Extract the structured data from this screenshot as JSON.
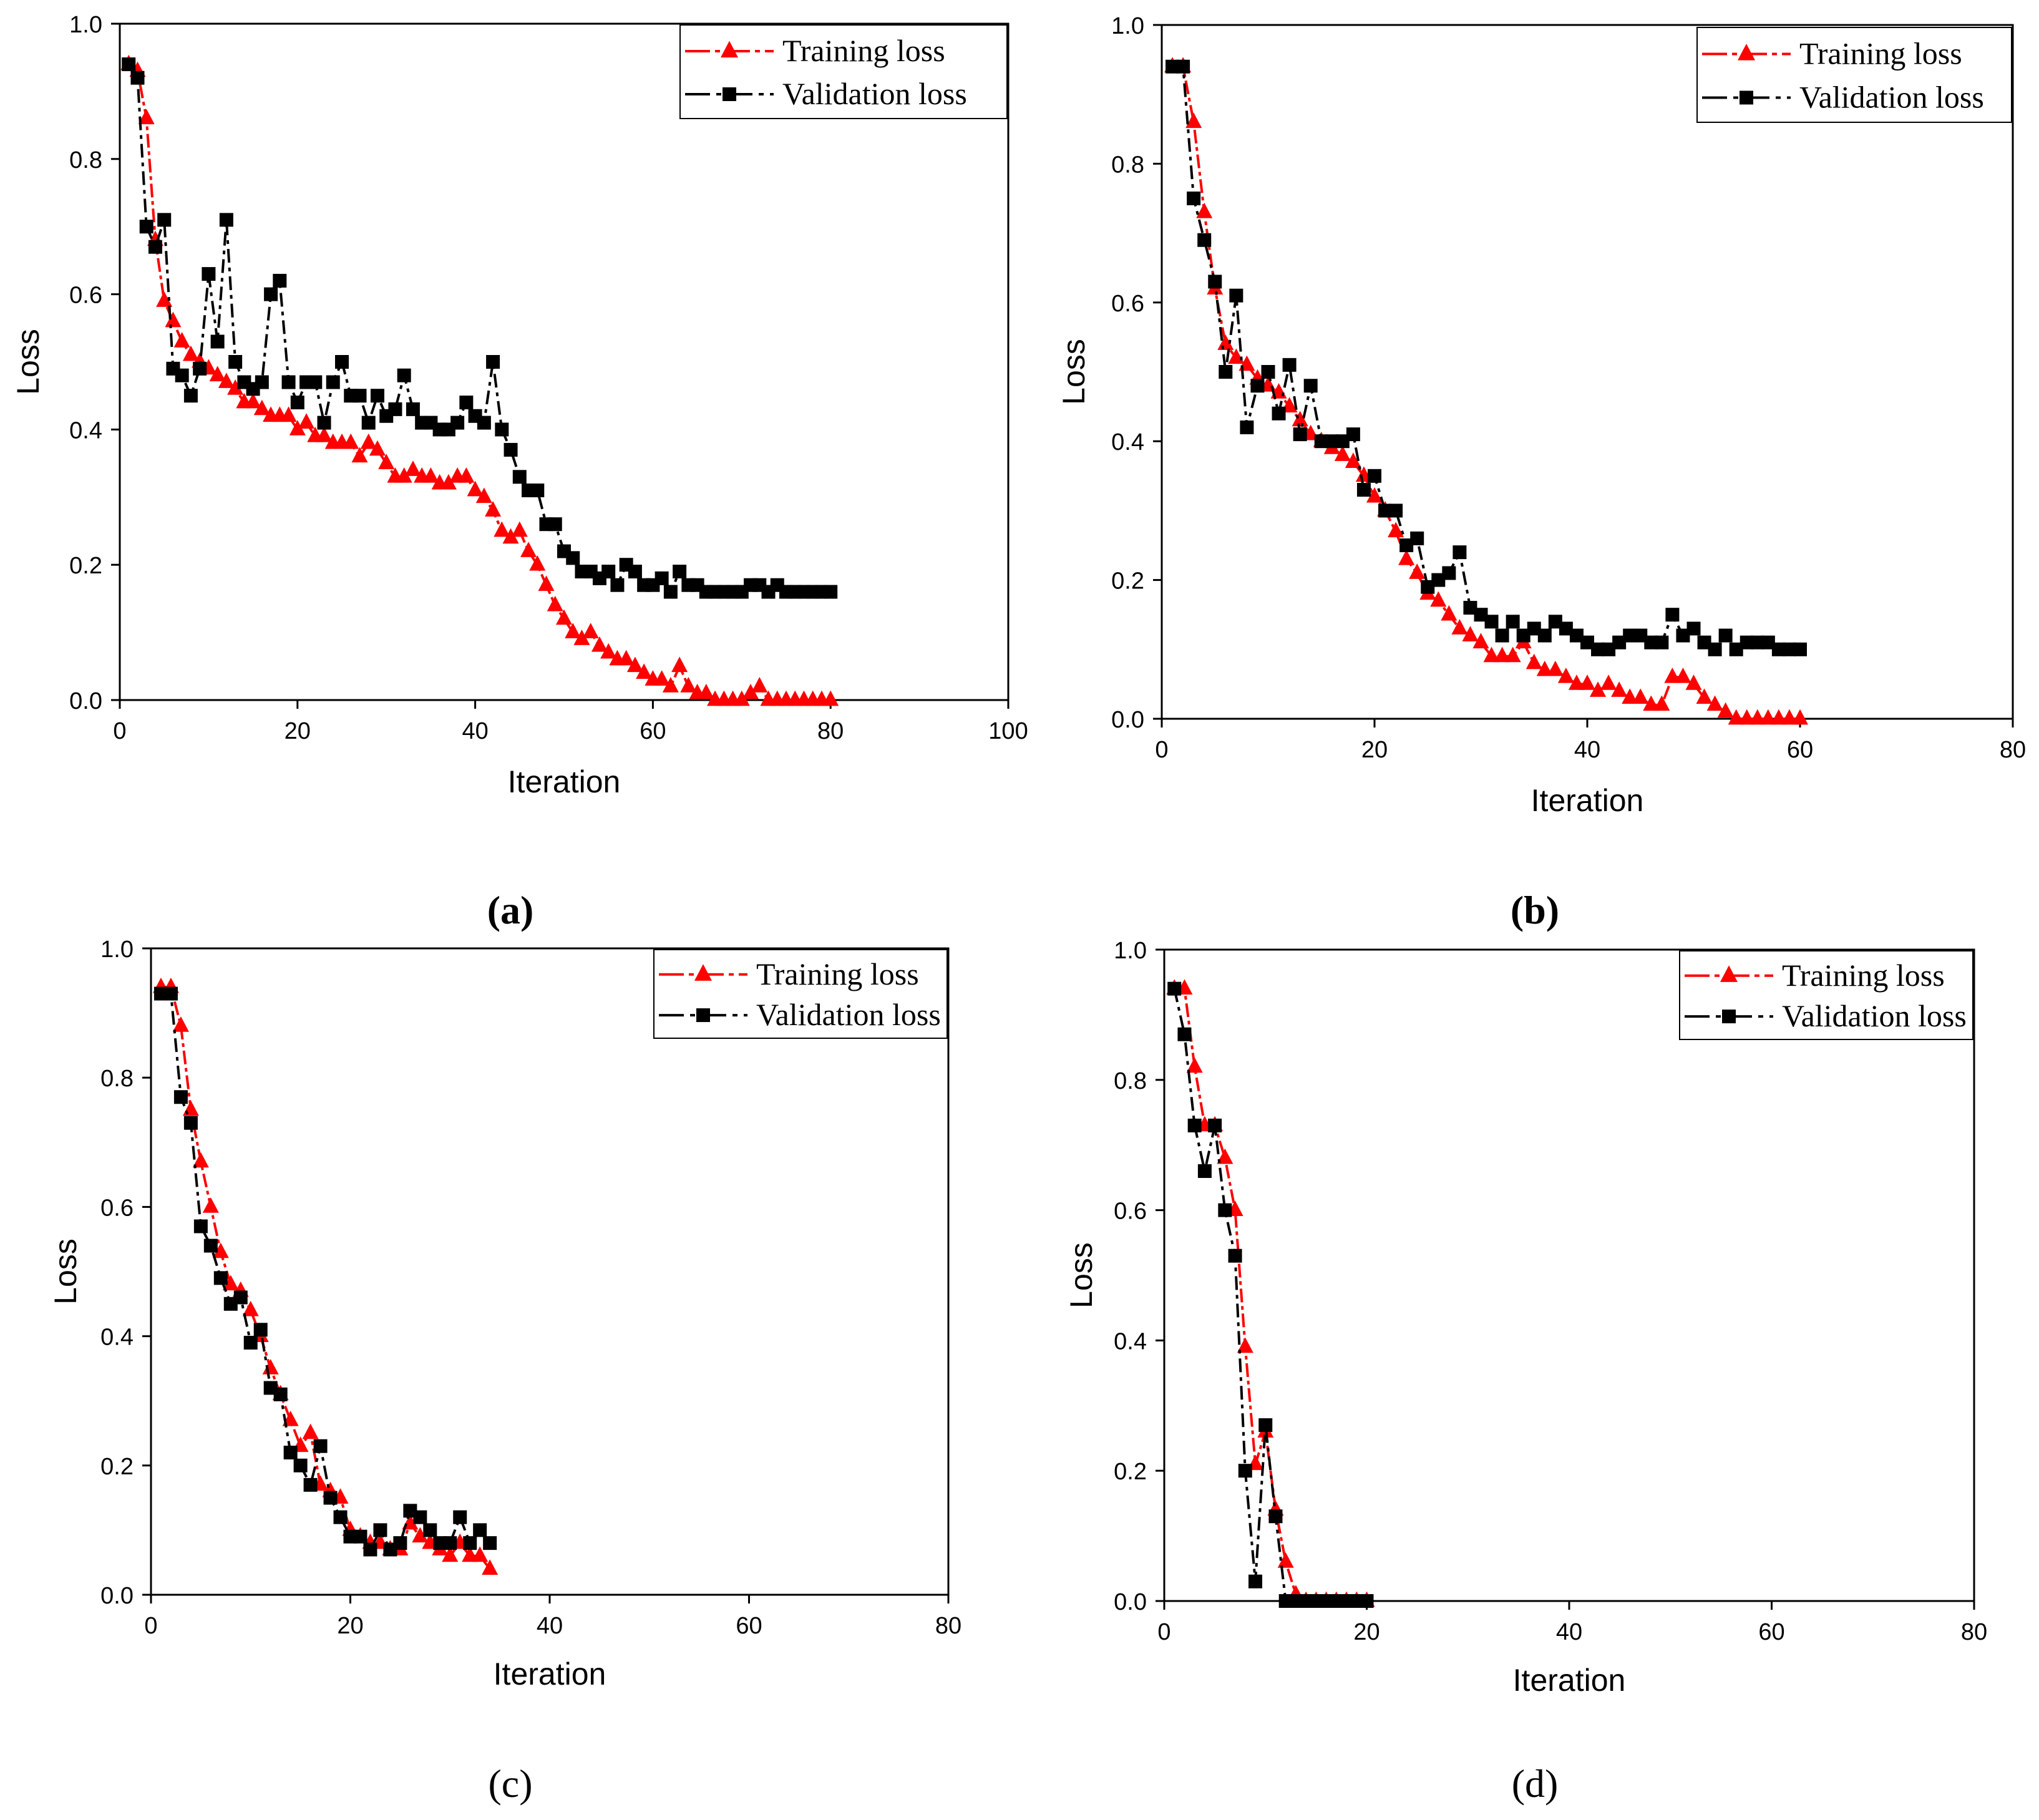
{
  "colors": {
    "training": "#ff0000",
    "validation": "#000000"
  },
  "chart_data": [
    {
      "type": "line",
      "panel": "a",
      "xlabel": "Iteration",
      "ylabel": "Loss",
      "xlim": [
        0,
        100
      ],
      "ylim": [
        0,
        1.0
      ],
      "xticks": [
        0,
        20,
        40,
        60,
        80,
        100
      ],
      "yticks": [
        0.0,
        0.2,
        0.4,
        0.6,
        0.8,
        1.0
      ],
      "xtick_labels": [
        "0",
        "20",
        "40",
        "60",
        "80",
        "100"
      ],
      "ytick_labels": [
        "0.0",
        "0.2",
        "0.4",
        "0.6",
        "0.8",
        "1.0"
      ],
      "legend": [
        "Training loss",
        "Validation loss"
      ],
      "legend_position": "top-right",
      "series": [
        {
          "name": "Training loss",
          "marker": "triangle",
          "x": [
            1,
            2,
            3,
            4,
            5,
            6,
            7,
            8,
            9,
            10,
            11,
            12,
            13,
            14,
            15,
            16,
            17,
            18,
            19,
            20,
            21,
            22,
            23,
            24,
            25,
            26,
            27,
            28,
            29,
            30,
            31,
            32,
            33,
            34,
            35,
            36,
            37,
            38,
            39,
            40,
            41,
            42,
            43,
            44,
            45,
            46,
            47,
            48,
            49,
            50,
            51,
            52,
            53,
            54,
            55,
            56,
            57,
            58,
            59,
            60,
            61,
            62,
            63,
            64,
            65,
            66,
            67,
            68,
            69,
            70,
            71,
            72,
            73,
            74,
            75,
            76,
            77,
            78,
            79,
            80
          ],
          "values": [
            0.94,
            0.93,
            0.86,
            0.68,
            0.59,
            0.56,
            0.53,
            0.51,
            0.5,
            0.49,
            0.48,
            0.47,
            0.46,
            0.44,
            0.44,
            0.43,
            0.42,
            0.42,
            0.42,
            0.4,
            0.41,
            0.39,
            0.39,
            0.38,
            0.38,
            0.38,
            0.36,
            0.38,
            0.37,
            0.35,
            0.33,
            0.33,
            0.34,
            0.33,
            0.33,
            0.32,
            0.32,
            0.33,
            0.33,
            0.31,
            0.3,
            0.28,
            0.25,
            0.24,
            0.25,
            0.22,
            0.2,
            0.17,
            0.14,
            0.12,
            0.1,
            0.09,
            0.1,
            0.08,
            0.07,
            0.06,
            0.06,
            0.05,
            0.04,
            0.03,
            0.03,
            0.02,
            0.05,
            0.02,
            0.01,
            0.01,
            0.0,
            0.0,
            0.0,
            0.0,
            0.01,
            0.02,
            0.0,
            0.0,
            0.0,
            0.0,
            0.0,
            0.0,
            0.0,
            0.0
          ]
        },
        {
          "name": "Validation loss",
          "marker": "square",
          "x": [
            1,
            2,
            3,
            4,
            5,
            6,
            7,
            8,
            9,
            10,
            11,
            12,
            13,
            14,
            15,
            16,
            17,
            18,
            19,
            20,
            21,
            22,
            23,
            24,
            25,
            26,
            27,
            28,
            29,
            30,
            31,
            32,
            33,
            34,
            35,
            36,
            37,
            38,
            39,
            40,
            41,
            42,
            43,
            44,
            45,
            46,
            47,
            48,
            49,
            50,
            51,
            52,
            53,
            54,
            55,
            56,
            57,
            58,
            59,
            60,
            61,
            62,
            63,
            64,
            65,
            66,
            67,
            68,
            69,
            70,
            71,
            72,
            73,
            74,
            75,
            76,
            77,
            78,
            79,
            80
          ],
          "values": [
            0.94,
            0.92,
            0.7,
            0.67,
            0.71,
            0.49,
            0.48,
            0.45,
            0.49,
            0.63,
            0.53,
            0.71,
            0.5,
            0.47,
            0.46,
            0.47,
            0.6,
            0.62,
            0.47,
            0.44,
            0.47,
            0.47,
            0.41,
            0.47,
            0.5,
            0.45,
            0.45,
            0.41,
            0.45,
            0.42,
            0.43,
            0.48,
            0.43,
            0.41,
            0.41,
            0.4,
            0.4,
            0.41,
            0.44,
            0.42,
            0.41,
            0.5,
            0.4,
            0.37,
            0.33,
            0.31,
            0.31,
            0.26,
            0.26,
            0.22,
            0.21,
            0.19,
            0.19,
            0.18,
            0.19,
            0.17,
            0.2,
            0.19,
            0.17,
            0.17,
            0.18,
            0.16,
            0.19,
            0.17,
            0.17,
            0.16,
            0.16,
            0.16,
            0.16,
            0.16,
            0.17,
            0.17,
            0.16,
            0.17,
            0.16,
            0.16,
            0.16,
            0.16,
            0.16,
            0.16
          ]
        }
      ]
    },
    {
      "type": "line",
      "panel": "b",
      "xlabel": "Iteration",
      "ylabel": "Loss",
      "xlim": [
        0,
        80
      ],
      "ylim": [
        0,
        1.0
      ],
      "xticks": [
        0,
        20,
        40,
        60,
        80
      ],
      "yticks": [
        0.0,
        0.2,
        0.4,
        0.6,
        0.8,
        1.0
      ],
      "xtick_labels": [
        "0",
        "20",
        "40",
        "60",
        "80"
      ],
      "ytick_labels": [
        "0.0",
        "0.2",
        "0.4",
        "0.6",
        "0.8",
        "1.0"
      ],
      "legend": [
        "Training loss",
        "Validation loss"
      ],
      "legend_position": "top-right",
      "series": [
        {
          "name": "Training loss",
          "marker": "triangle",
          "x": [
            1,
            2,
            3,
            4,
            5,
            6,
            7,
            8,
            9,
            10,
            11,
            12,
            13,
            14,
            15,
            16,
            17,
            18,
            19,
            20,
            21,
            22,
            23,
            24,
            25,
            26,
            27,
            28,
            29,
            30,
            31,
            32,
            33,
            34,
            35,
            36,
            37,
            38,
            39,
            40,
            41,
            42,
            43,
            44,
            45,
            46,
            47,
            48,
            49,
            50,
            51,
            52,
            53,
            54,
            55,
            56,
            57,
            58,
            59,
            60
          ],
          "values": [
            0.94,
            0.94,
            0.86,
            0.73,
            0.62,
            0.54,
            0.52,
            0.51,
            0.49,
            0.48,
            0.47,
            0.45,
            0.43,
            0.41,
            0.4,
            0.39,
            0.38,
            0.37,
            0.35,
            0.32,
            0.3,
            0.27,
            0.23,
            0.21,
            0.18,
            0.17,
            0.15,
            0.13,
            0.12,
            0.11,
            0.09,
            0.09,
            0.09,
            0.11,
            0.08,
            0.07,
            0.07,
            0.06,
            0.05,
            0.05,
            0.04,
            0.05,
            0.04,
            0.03,
            0.03,
            0.02,
            0.02,
            0.06,
            0.06,
            0.05,
            0.03,
            0.02,
            0.01,
            0.0,
            0.0,
            0.0,
            0.0,
            0.0,
            0.0,
            0.0
          ]
        },
        {
          "name": "Validation loss",
          "marker": "square",
          "x": [
            1,
            2,
            3,
            4,
            5,
            6,
            7,
            8,
            9,
            10,
            11,
            12,
            13,
            14,
            15,
            16,
            17,
            18,
            19,
            20,
            21,
            22,
            23,
            24,
            25,
            26,
            27,
            28,
            29,
            30,
            31,
            32,
            33,
            34,
            35,
            36,
            37,
            38,
            39,
            40,
            41,
            42,
            43,
            44,
            45,
            46,
            47,
            48,
            49,
            50,
            51,
            52,
            53,
            54,
            55,
            56,
            57,
            58,
            59,
            60
          ],
          "values": [
            0.94,
            0.94,
            0.75,
            0.69,
            0.63,
            0.5,
            0.61,
            0.42,
            0.48,
            0.5,
            0.44,
            0.51,
            0.41,
            0.48,
            0.4,
            0.4,
            0.4,
            0.41,
            0.33,
            0.35,
            0.3,
            0.3,
            0.25,
            0.26,
            0.19,
            0.2,
            0.21,
            0.24,
            0.16,
            0.15,
            0.14,
            0.12,
            0.14,
            0.12,
            0.13,
            0.12,
            0.14,
            0.13,
            0.12,
            0.11,
            0.1,
            0.1,
            0.11,
            0.12,
            0.12,
            0.11,
            0.11,
            0.15,
            0.12,
            0.13,
            0.11,
            0.1,
            0.12,
            0.1,
            0.11,
            0.11,
            0.11,
            0.1,
            0.1,
            0.1
          ]
        }
      ]
    },
    {
      "type": "line",
      "panel": "c",
      "xlabel": "Iteration",
      "ylabel": "Loss",
      "xlim": [
        0,
        80
      ],
      "ylim": [
        0,
        1.0
      ],
      "xticks": [
        0,
        20,
        40,
        60,
        80
      ],
      "yticks": [
        0.0,
        0.2,
        0.4,
        0.6,
        0.8,
        1.0
      ],
      "xtick_labels": [
        "0",
        "20",
        "40",
        "60",
        "80"
      ],
      "ytick_labels": [
        "0.0",
        "0.2",
        "0.4",
        "0.6",
        "0.8",
        "1.0"
      ],
      "legend": [
        "Training loss",
        "Validation loss"
      ],
      "legend_position": "top-right",
      "series": [
        {
          "name": "Training loss",
          "marker": "triangle",
          "x": [
            1,
            2,
            3,
            4,
            5,
            6,
            7,
            8,
            9,
            10,
            11,
            12,
            13,
            14,
            15,
            16,
            17,
            18,
            19,
            20,
            21,
            22,
            23,
            24,
            25,
            26,
            27,
            28,
            29,
            30,
            31,
            32,
            33,
            34
          ],
          "values": [
            0.94,
            0.94,
            0.88,
            0.75,
            0.67,
            0.6,
            0.53,
            0.48,
            0.47,
            0.44,
            0.4,
            0.35,
            0.31,
            0.27,
            0.23,
            0.25,
            0.17,
            0.16,
            0.15,
            0.1,
            0.09,
            0.08,
            0.08,
            0.07,
            0.07,
            0.11,
            0.09,
            0.08,
            0.07,
            0.06,
            0.08,
            0.06,
            0.06,
            0.04
          ]
        },
        {
          "name": "Validation loss",
          "marker": "square",
          "x": [
            1,
            2,
            3,
            4,
            5,
            6,
            7,
            8,
            9,
            10,
            11,
            12,
            13,
            14,
            15,
            16,
            17,
            18,
            19,
            20,
            21,
            22,
            23,
            24,
            25,
            26,
            27,
            28,
            29,
            30,
            31,
            32,
            33,
            34
          ],
          "values": [
            0.93,
            0.93,
            0.77,
            0.73,
            0.57,
            0.54,
            0.49,
            0.45,
            0.46,
            0.39,
            0.41,
            0.32,
            0.31,
            0.22,
            0.2,
            0.17,
            0.23,
            0.15,
            0.12,
            0.09,
            0.09,
            0.07,
            0.1,
            0.07,
            0.08,
            0.13,
            0.12,
            0.1,
            0.08,
            0.08,
            0.12,
            0.08,
            0.1,
            0.08
          ]
        }
      ]
    },
    {
      "type": "line",
      "panel": "d",
      "xlabel": "Iteration",
      "ylabel": "Loss",
      "xlim": [
        0,
        80
      ],
      "ylim": [
        0,
        1.0
      ],
      "xticks": [
        0,
        20,
        40,
        60,
        80
      ],
      "yticks": [
        0.0,
        0.2,
        0.4,
        0.6,
        0.8,
        1.0
      ],
      "xtick_labels": [
        "0",
        "20",
        "40",
        "60",
        "80"
      ],
      "ytick_labels": [
        "0.0",
        "0.2",
        "0.4",
        "0.6",
        "0.8",
        "1.0"
      ],
      "legend": [
        "Training loss",
        "Validation loss"
      ],
      "legend_position": "top-right",
      "series": [
        {
          "name": "Training loss",
          "marker": "triangle",
          "x": [
            1,
            2,
            3,
            4,
            5,
            6,
            7,
            8,
            9,
            10,
            11,
            12,
            13,
            14,
            15,
            16,
            17,
            18,
            19,
            20
          ],
          "values": [
            0.94,
            0.94,
            0.82,
            0.73,
            0.73,
            0.68,
            0.6,
            0.39,
            0.21,
            0.26,
            0.14,
            0.06,
            0.01,
            0.0,
            0.0,
            0.0,
            0.0,
            0.0,
            0.0,
            0.0
          ]
        },
        {
          "name": "Validation loss",
          "marker": "square",
          "x": [
            1,
            2,
            3,
            4,
            5,
            6,
            7,
            8,
            9,
            10,
            11,
            12,
            13,
            14,
            15,
            16,
            17,
            18,
            19,
            20
          ],
          "values": [
            0.94,
            0.87,
            0.73,
            0.66,
            0.73,
            0.6,
            0.53,
            0.2,
            0.03,
            0.27,
            0.13,
            0.0,
            0.0,
            0.0,
            0.0,
            0.0,
            0.0,
            0.0,
            0.0,
            0.0
          ]
        }
      ]
    }
  ],
  "panel_labels": [
    "(a)",
    "(b)",
    "(c)",
    "(d)"
  ]
}
